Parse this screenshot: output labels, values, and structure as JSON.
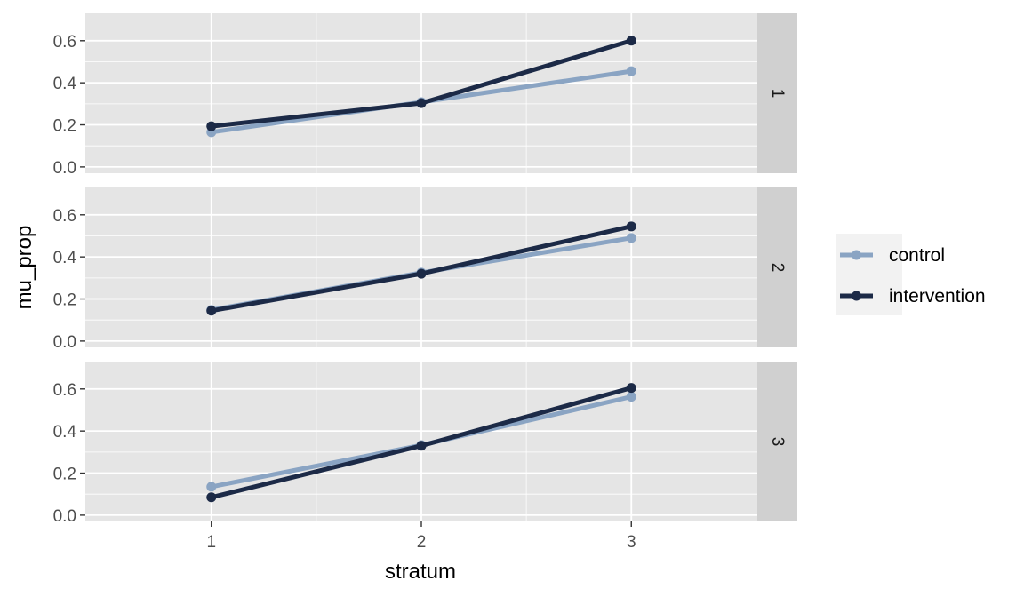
{
  "chart_data": {
    "type": "line",
    "facet_by": "row",
    "xlabel": "stratum",
    "ylabel": "mu_prop",
    "x": [
      1,
      2,
      3
    ],
    "xlim": [
      0.4,
      3.6
    ],
    "ylim": [
      -0.03,
      0.73
    ],
    "y_ticks": [
      0.0,
      0.2,
      0.4,
      0.6
    ],
    "y_tick_labels": [
      "0.0",
      "0.2",
      "0.4",
      "0.6"
    ],
    "x_tick_labels": [
      "1",
      "2",
      "3"
    ],
    "grid": true,
    "legend_position": "right",
    "colors": {
      "control": "#8aa4c3",
      "intervention": "#1c2a47",
      "panel_bg": "#e5e5e5",
      "strip_bg": "#d0d0d0",
      "grid": "#ffffff"
    },
    "panels": [
      {
        "strip_label": "1",
        "series": [
          {
            "name": "control",
            "values": [
              0.165,
              0.308,
              0.455
            ]
          },
          {
            "name": "intervention",
            "values": [
              0.193,
              0.303,
              0.6
            ]
          }
        ]
      },
      {
        "strip_label": "2",
        "series": [
          {
            "name": "control",
            "values": [
              0.148,
              0.325,
              0.49
            ]
          },
          {
            "name": "intervention",
            "values": [
              0.144,
              0.32,
              0.545
            ]
          }
        ]
      },
      {
        "strip_label": "3",
        "series": [
          {
            "name": "control",
            "values": [
              0.135,
              0.333,
              0.563
            ]
          },
          {
            "name": "intervention",
            "values": [
              0.085,
              0.33,
              0.605
            ]
          }
        ]
      }
    ]
  }
}
